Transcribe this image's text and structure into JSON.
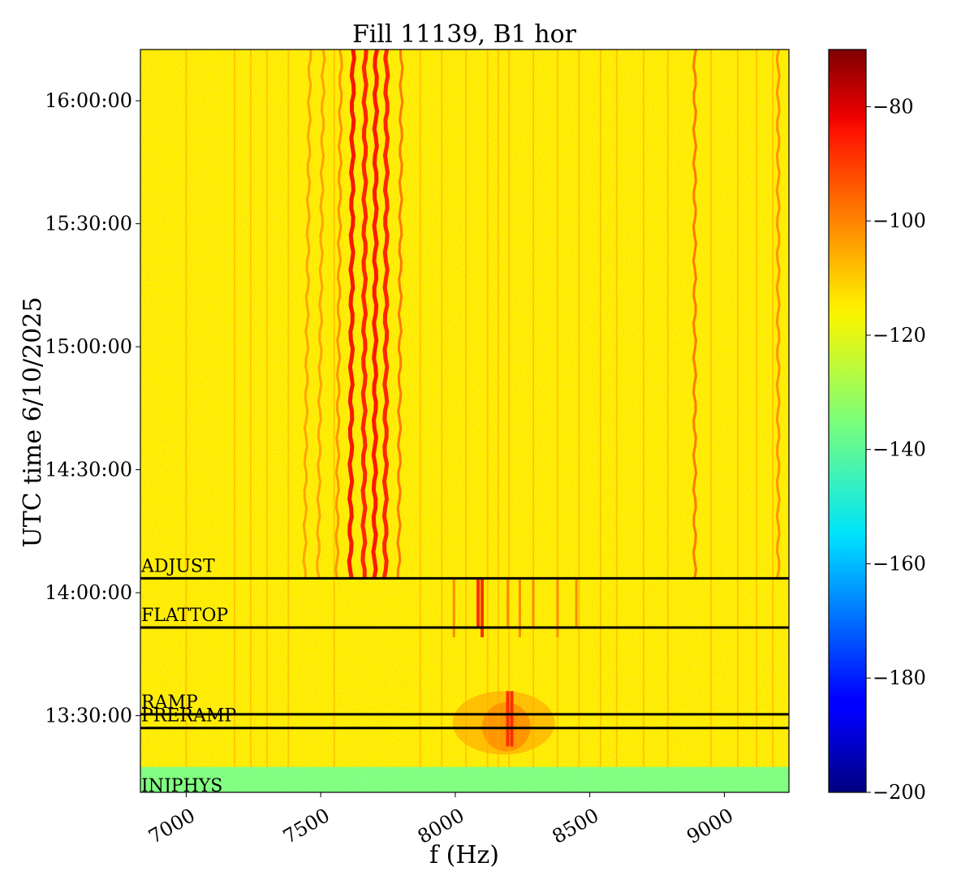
{
  "chart_data": {
    "type": "heatmap",
    "title": "Fill 11139, B1 hor",
    "xlabel": "f (Hz)",
    "ylabel": "UTC time 6/10/2025",
    "xlim": [
      6830,
      9240
    ],
    "x_ticks": [
      7000,
      7500,
      8000,
      8500,
      9000
    ],
    "x_tick_labels": [
      "7000",
      "7500",
      "8000",
      "8500",
      "9000"
    ],
    "y_ticks": [
      "16:00:00",
      "15:30:00",
      "15:00:00",
      "14:30:00",
      "14:00:00",
      "13:30:00"
    ],
    "ylim_minutes_from_1300": [
      11.3,
      192.5
    ],
    "colormap": "jet",
    "colorbar": {
      "range": [
        -200,
        -70
      ],
      "ticks": [
        -80,
        -100,
        -120,
        -140,
        -160,
        -180,
        -200
      ],
      "tick_labels": [
        "−80",
        "−100",
        "−120",
        "−140",
        "−160",
        "−180",
        "−200"
      ]
    },
    "background_level": -117,
    "phases": [
      {
        "label": "ADJUST",
        "time": "14:03:30"
      },
      {
        "label": "FLATTOP",
        "time": "13:51:30"
      },
      {
        "label": "RAMP",
        "time": "13:30:20"
      },
      {
        "label": "PRERAMP",
        "time": "13:27:00"
      },
      {
        "label": "INJPHYS",
        "time": ""
      }
    ],
    "injphys_band_end": "13:17:30",
    "spectral_lines": [
      {
        "f_start": 7610,
        "f_end": 7620,
        "level": -85
      },
      {
        "f_start": 7660,
        "f_end": 7665,
        "level": -88
      },
      {
        "f_start": 7700,
        "f_end": 7705,
        "level": -86
      },
      {
        "f_start": 7740,
        "f_end": 7745,
        "level": -88
      },
      {
        "f_start": 7790,
        "f_end": 7800,
        "level": -100
      },
      {
        "f_start": 7560,
        "f_end": 7575,
        "level": -104
      },
      {
        "f_start": 7490,
        "f_end": 7510,
        "level": -106
      },
      {
        "f_start": 7440,
        "f_end": 7460,
        "level": -106
      },
      {
        "f_start": 8890,
        "f_end": 8890,
        "level": -100
      },
      {
        "f_start": 9200,
        "f_end": 9200,
        "level": -104
      }
    ]
  }
}
